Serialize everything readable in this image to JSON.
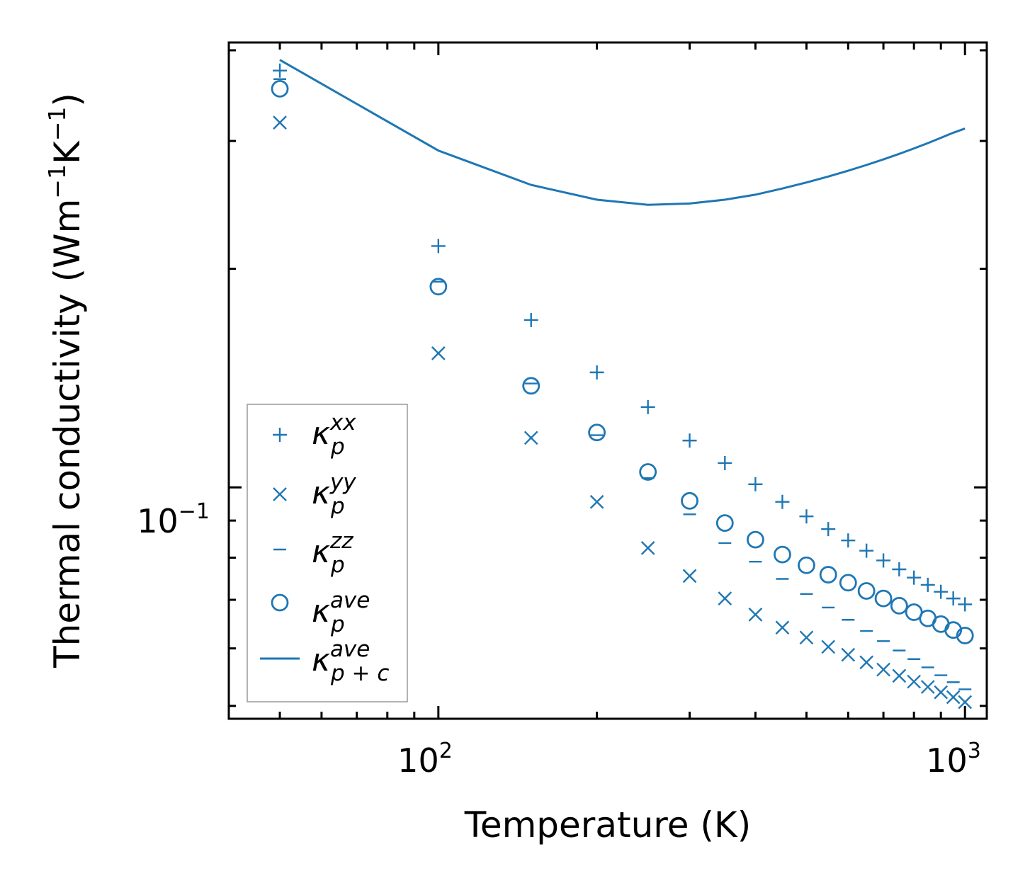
{
  "chart_data": {
    "type": "scatter",
    "title": "",
    "xlabel": "Temperature (K)",
    "ylabel": "Thermal conductivity (Wm",
    "ylabel_unit_rest": "K",
    "ylabel_sup": "−1",
    "ylabel_close": ")",
    "xscale": "log",
    "yscale": "log",
    "xlim": [
      40,
      1100
    ],
    "ylim": [
      0.048,
      0.41
    ],
    "color": "#1f77b4",
    "x_ticks": [
      {
        "value": 100,
        "base": "10",
        "exp": "2"
      },
      {
        "value": 1000,
        "base": "10",
        "exp": "3"
      }
    ],
    "y_ticks": [
      {
        "value": 0.1,
        "base": "10",
        "exp": "−1"
      }
    ],
    "x": [
      50,
      100,
      150,
      200,
      250,
      300,
      350,
      400,
      450,
      500,
      550,
      600,
      650,
      700,
      750,
      800,
      850,
      900,
      950,
      1000
    ],
    "series": [
      {
        "name": "κp^xx",
        "base": "κ",
        "sub": "p",
        "sup": "xx",
        "marker": "plus",
        "values": [
          0.375,
          0.215,
          0.17,
          0.144,
          0.129,
          0.116,
          0.108,
          0.101,
          0.0955,
          0.0912,
          0.0876,
          0.0845,
          0.0818,
          0.0793,
          0.0771,
          0.0751,
          0.0734,
          0.0718,
          0.0703,
          0.069
        ]
      },
      {
        "name": "κp^yy",
        "base": "κ",
        "sub": "p",
        "sup": "yy",
        "marker": "x",
        "values": [
          0.318,
          0.153,
          0.117,
          0.0955,
          0.0825,
          0.0755,
          0.0703,
          0.0668,
          0.0641,
          0.0621,
          0.0603,
          0.0588,
          0.0574,
          0.0561,
          0.055,
          0.054,
          0.0531,
          0.0522,
          0.0514,
          0.0506
        ]
      },
      {
        "name": "κp^zz",
        "base": "κ",
        "sub": "p",
        "sup": "zz",
        "marker": "hline",
        "values": [
          0.365,
          0.192,
          0.139,
          0.118,
          0.103,
          0.0918,
          0.0838,
          0.079,
          0.0748,
          0.0713,
          0.0683,
          0.0657,
          0.0634,
          0.0614,
          0.0596,
          0.058,
          0.0565,
          0.0551,
          0.0539,
          0.0527
        ]
      },
      {
        "name": "κp^ave",
        "base": "κ",
        "sub": "p",
        "sup": "ave",
        "marker": "circle",
        "values": [
          0.354,
          0.189,
          0.138,
          0.119,
          0.105,
          0.0958,
          0.0893,
          0.0847,
          0.0808,
          0.0781,
          0.0758,
          0.0739,
          0.072,
          0.0703,
          0.0687,
          0.0673,
          0.066,
          0.0648,
          0.0636,
          0.0625
        ]
      },
      {
        "name": "κp+c^ave",
        "base": "κ",
        "sub": "p + c",
        "sup": "ave",
        "marker": "line",
        "values": [
          0.388,
          0.291,
          0.261,
          0.249,
          0.245,
          0.246,
          0.249,
          0.253,
          0.258,
          0.263,
          0.268,
          0.273,
          0.278,
          0.283,
          0.288,
          0.293,
          0.298,
          0.303,
          0.308,
          0.312
        ]
      }
    ],
    "legend_position": "lower-left",
    "grid": false
  }
}
